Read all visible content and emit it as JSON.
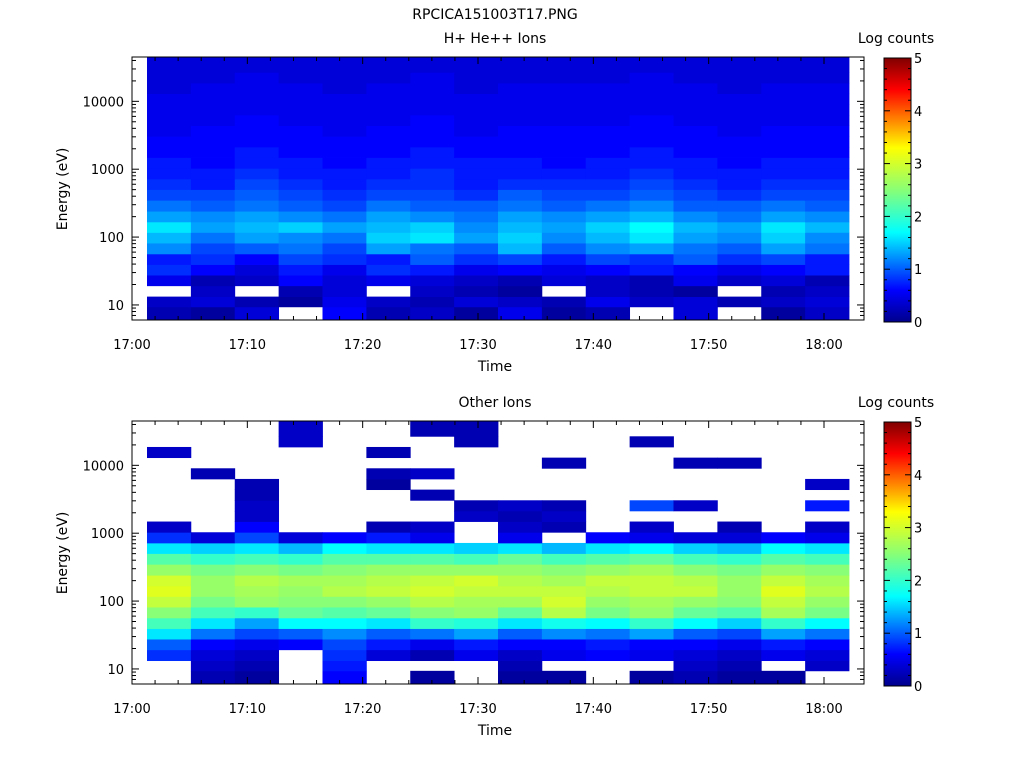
{
  "figure_title": "RPCICA151003T17.PNG",
  "chart_data": [
    {
      "type": "heatmap",
      "title": "H+ He++ Ions",
      "xlabel": "Time",
      "ylabel": "Energy (eV)",
      "x_ticks": [
        "17:00",
        "17:10",
        "17:20",
        "17:30",
        "17:40",
        "17:50",
        "18:00"
      ],
      "y_ticks": [
        "10",
        "100",
        "1000",
        "10000"
      ],
      "y_scale": "log",
      "ylim": [
        6,
        45000
      ],
      "colorbar": {
        "label": "Log counts",
        "ticks": [
          "0",
          "1",
          "2",
          "3",
          "4",
          "5"
        ],
        "range": [
          0,
          5
        ]
      },
      "time_bins": [
        "17:02",
        "17:06",
        "17:10",
        "17:14",
        "17:18",
        "17:22",
        "17:26",
        "17:30",
        "17:34",
        "17:38",
        "17:42",
        "17:46",
        "17:50",
        "17:54",
        "17:58",
        "18:02"
      ],
      "energy_bins_eV": [
        8,
        11,
        16,
        23,
        33,
        47,
        68,
        98,
        140,
        200,
        290,
        420,
        600,
        860,
        1240,
        1780,
        2550,
        3660,
        5260,
        7550,
        10840,
        15560,
        22340,
        32080
      ],
      "values": [
        [
          0.2,
          0.1,
          0.4,
          null,
          0.6,
          0.2,
          0.3,
          0.1,
          0.5,
          0.1,
          0.2,
          null,
          0.4,
          null,
          0.1,
          0.3
        ],
        [
          0.3,
          0.4,
          0.2,
          0.1,
          0.5,
          0.3,
          0.2,
          0.4,
          0.3,
          0.2,
          0.5,
          0.3,
          0.4,
          0.2,
          0.3,
          0.4
        ],
        [
          null,
          0.3,
          null,
          0.2,
          0.4,
          null,
          0.3,
          0.2,
          0.1,
          null,
          0.3,
          0.2,
          0.1,
          null,
          0.2,
          0.3
        ],
        [
          0.5,
          0.2,
          0.3,
          0.6,
          0.4,
          0.5,
          0.4,
          0.3,
          0.2,
          0.4,
          0.3,
          0.2,
          0.5,
          0.3,
          0.4,
          0.2
        ],
        [
          0.8,
          0.6,
          0.4,
          0.7,
          0.5,
          0.8,
          0.7,
          0.5,
          0.6,
          0.5,
          0.6,
          0.7,
          0.6,
          0.5,
          0.6,
          0.7
        ],
        [
          0.7,
          0.8,
          0.6,
          0.9,
          0.8,
          0.7,
          1.0,
          0.8,
          0.9,
          0.7,
          0.9,
          0.8,
          1.0,
          0.8,
          0.9,
          0.7
        ],
        [
          1.2,
          0.9,
          1.0,
          1.1,
          0.9,
          1.3,
          1.1,
          1.0,
          1.4,
          1.0,
          1.2,
          1.3,
          1.1,
          1.0,
          1.3,
          1.1
        ],
        [
          1.4,
          1.1,
          1.3,
          1.2,
          1.1,
          1.5,
          1.6,
          1.3,
          1.5,
          1.2,
          1.4,
          1.6,
          1.3,
          1.2,
          1.5,
          1.2
        ],
        [
          1.6,
          1.3,
          1.4,
          1.5,
          1.3,
          1.4,
          1.5,
          1.2,
          1.4,
          1.3,
          1.5,
          1.7,
          1.4,
          1.3,
          1.6,
          1.4
        ],
        [
          1.3,
          1.2,
          1.3,
          1.2,
          1.1,
          1.3,
          1.2,
          1.1,
          1.3,
          1.2,
          1.3,
          1.4,
          1.2,
          1.1,
          1.3,
          1.2
        ],
        [
          1.1,
          1.0,
          1.1,
          1.0,
          0.9,
          1.1,
          1.0,
          1.0,
          1.1,
          1.0,
          1.1,
          1.2,
          1.0,
          1.0,
          1.1,
          1.0
        ],
        [
          0.9,
          0.9,
          1.0,
          0.9,
          0.8,
          0.9,
          0.9,
          0.8,
          1.0,
          0.9,
          0.9,
          1.0,
          0.9,
          0.8,
          0.9,
          0.9
        ],
        [
          0.8,
          0.7,
          0.9,
          0.8,
          0.7,
          0.8,
          0.8,
          0.7,
          0.8,
          0.8,
          0.8,
          0.9,
          0.8,
          0.7,
          0.8,
          0.8
        ],
        [
          0.7,
          0.7,
          0.8,
          0.7,
          0.7,
          0.7,
          0.8,
          0.7,
          0.7,
          0.7,
          0.7,
          0.8,
          0.7,
          0.7,
          0.7,
          0.7
        ],
        [
          0.7,
          0.6,
          0.7,
          0.7,
          0.6,
          0.7,
          0.7,
          0.7,
          0.7,
          0.6,
          0.7,
          0.7,
          0.7,
          0.6,
          0.7,
          0.7
        ],
        [
          0.6,
          0.6,
          0.7,
          0.6,
          0.6,
          0.6,
          0.7,
          0.6,
          0.6,
          0.6,
          0.6,
          0.7,
          0.6,
          0.6,
          0.6,
          0.6
        ],
        [
          0.6,
          0.6,
          0.6,
          0.6,
          0.6,
          0.6,
          0.6,
          0.6,
          0.6,
          0.6,
          0.6,
          0.6,
          0.6,
          0.6,
          0.6,
          0.6
        ],
        [
          0.5,
          0.6,
          0.6,
          0.6,
          0.5,
          0.6,
          0.6,
          0.5,
          0.6,
          0.6,
          0.6,
          0.6,
          0.6,
          0.5,
          0.6,
          0.6
        ],
        [
          0.5,
          0.5,
          0.6,
          0.5,
          0.5,
          0.5,
          0.6,
          0.5,
          0.5,
          0.5,
          0.5,
          0.6,
          0.5,
          0.5,
          0.5,
          0.5
        ],
        [
          0.5,
          0.5,
          0.5,
          0.5,
          0.5,
          0.5,
          0.5,
          0.5,
          0.5,
          0.5,
          0.5,
          0.5,
          0.5,
          0.5,
          0.5,
          0.5
        ],
        [
          0.5,
          0.5,
          0.5,
          0.5,
          0.5,
          0.5,
          0.5,
          0.5,
          0.5,
          0.5,
          0.5,
          0.5,
          0.5,
          0.5,
          0.5,
          0.5
        ],
        [
          0.4,
          0.5,
          0.5,
          0.5,
          0.4,
          0.5,
          0.5,
          0.4,
          0.5,
          0.5,
          0.5,
          0.5,
          0.5,
          0.4,
          0.5,
          0.5
        ],
        [
          0.4,
          0.4,
          0.5,
          0.4,
          0.4,
          0.4,
          0.5,
          0.4,
          0.4,
          0.4,
          0.4,
          0.5,
          0.4,
          0.4,
          0.4,
          0.4
        ],
        [
          0.4,
          0.4,
          0.4,
          0.4,
          0.4,
          0.4,
          0.4,
          0.4,
          0.4,
          0.4,
          0.4,
          0.4,
          0.4,
          0.4,
          0.4,
          0.4
        ]
      ]
    },
    {
      "type": "heatmap",
      "title": "Other Ions",
      "xlabel": "Time",
      "ylabel": "Energy (eV)",
      "x_ticks": [
        "17:00",
        "17:10",
        "17:20",
        "17:30",
        "17:40",
        "17:50",
        "18:00"
      ],
      "y_ticks": [
        "10",
        "100",
        "1000",
        "10000"
      ],
      "y_scale": "log",
      "ylim": [
        6,
        45000
      ],
      "colorbar": {
        "label": "Log counts",
        "ticks": [
          "0",
          "1",
          "2",
          "3",
          "4",
          "5"
        ],
        "range": [
          0,
          5
        ]
      },
      "time_bins": [
        "17:02",
        "17:06",
        "17:10",
        "17:14",
        "17:18",
        "17:22",
        "17:26",
        "17:30",
        "17:34",
        "17:38",
        "17:42",
        "17:46",
        "17:50",
        "17:54",
        "17:58",
        "18:02"
      ],
      "energy_bins_eV": [
        8,
        11,
        16,
        23,
        33,
        47,
        68,
        98,
        140,
        200,
        290,
        420,
        600,
        860,
        1240,
        1780,
        2550,
        3660,
        5260,
        7550,
        10840,
        15560,
        22340,
        32080
      ],
      "values": [
        [
          null,
          0.2,
          0.1,
          null,
          0.6,
          null,
          0.1,
          null,
          0.1,
          0.1,
          null,
          0.1,
          0.2,
          0.1,
          0.1,
          null
        ],
        [
          null,
          0.3,
          0.2,
          null,
          0.7,
          null,
          null,
          null,
          0.2,
          null,
          null,
          null,
          0.3,
          0.2,
          null,
          0.3
        ],
        [
          0.8,
          0.4,
          0.3,
          null,
          0.8,
          0.4,
          0.2,
          0.5,
          0.3,
          0.5,
          0.6,
          0.5,
          0.4,
          0.3,
          0.5,
          0.4
        ],
        [
          1.0,
          0.6,
          0.5,
          0.6,
          0.9,
          0.7,
          0.5,
          0.7,
          0.6,
          0.6,
          0.7,
          0.6,
          0.6,
          0.5,
          0.7,
          0.6
        ],
        [
          1.6,
          1.1,
          0.9,
          1.0,
          1.2,
          1.0,
          1.1,
          1.3,
          1.0,
          1.2,
          1.1,
          1.3,
          1.0,
          0.9,
          1.3,
          1.1
        ],
        [
          2.1,
          1.6,
          1.3,
          1.7,
          1.7,
          1.6,
          2.0,
          1.9,
          1.6,
          1.8,
          1.7,
          2.0,
          1.7,
          1.5,
          2.0,
          1.7
        ],
        [
          2.5,
          2.1,
          2.0,
          2.3,
          2.2,
          2.3,
          2.5,
          2.6,
          2.3,
          2.8,
          2.4,
          2.6,
          2.3,
          2.2,
          2.7,
          2.4
        ],
        [
          2.9,
          2.4,
          2.6,
          2.5,
          2.5,
          2.6,
          2.8,
          2.7,
          2.7,
          3.0,
          2.6,
          2.7,
          2.6,
          2.5,
          2.9,
          2.6
        ],
        [
          3.1,
          2.6,
          2.7,
          2.6,
          2.8,
          2.9,
          3.0,
          2.9,
          2.9,
          2.9,
          2.8,
          2.9,
          2.9,
          2.6,
          3.1,
          2.8
        ],
        [
          3.0,
          2.6,
          2.8,
          2.7,
          2.7,
          2.8,
          2.9,
          3.0,
          2.8,
          2.7,
          2.9,
          2.9,
          2.8,
          2.6,
          2.9,
          2.7
        ],
        [
          2.6,
          2.4,
          2.5,
          2.4,
          2.5,
          2.6,
          2.6,
          2.6,
          2.6,
          2.5,
          2.6,
          2.7,
          2.5,
          2.4,
          2.6,
          2.5
        ],
        [
          2.2,
          2.0,
          2.1,
          2.0,
          2.2,
          2.2,
          2.2,
          2.1,
          2.3,
          2.1,
          2.2,
          2.3,
          2.1,
          2.0,
          2.2,
          2.1
        ],
        [
          1.6,
          1.5,
          1.6,
          1.4,
          1.7,
          1.6,
          1.6,
          1.5,
          1.6,
          1.4,
          1.6,
          1.7,
          1.5,
          1.4,
          1.7,
          1.6
        ],
        [
          0.8,
          0.4,
          0.9,
          0.4,
          0.6,
          0.7,
          0.5,
          null,
          0.5,
          null,
          0.6,
          0.5,
          0.4,
          0.4,
          0.6,
          0.5
        ],
        [
          0.3,
          null,
          0.6,
          null,
          null,
          0.2,
          0.3,
          null,
          0.3,
          0.2,
          null,
          0.3,
          null,
          0.2,
          null,
          0.3
        ],
        [
          null,
          null,
          0.3,
          null,
          null,
          null,
          null,
          0.3,
          0.2,
          0.3,
          null,
          null,
          null,
          null,
          null,
          null
        ],
        [
          null,
          null,
          0.3,
          null,
          null,
          null,
          null,
          0.2,
          0.3,
          0.2,
          null,
          0.9,
          0.3,
          null,
          null,
          0.7
        ],
        [
          null,
          null,
          0.2,
          null,
          null,
          null,
          0.2,
          null,
          null,
          null,
          null,
          null,
          null,
          null,
          null,
          null
        ],
        [
          null,
          null,
          0.2,
          null,
          null,
          0.1,
          null,
          null,
          null,
          null,
          null,
          null,
          null,
          null,
          null,
          0.3
        ],
        [
          null,
          0.2,
          null,
          null,
          null,
          0.2,
          0.3,
          null,
          null,
          null,
          null,
          null,
          null,
          null,
          null,
          null
        ],
        [
          null,
          null,
          null,
          null,
          null,
          null,
          null,
          null,
          null,
          0.2,
          null,
          null,
          0.2,
          0.2,
          null,
          null
        ],
        [
          0.3,
          null,
          null,
          null,
          null,
          0.2,
          null,
          null,
          null,
          null,
          null,
          null,
          null,
          null,
          null,
          null
        ],
        [
          null,
          null,
          null,
          0.3,
          null,
          null,
          null,
          0.2,
          null,
          null,
          null,
          0.2,
          null,
          null,
          null,
          null
        ],
        [
          null,
          null,
          null,
          0.3,
          null,
          null,
          0.2,
          0.2,
          null,
          null,
          null,
          null,
          null,
          null,
          null,
          null
        ]
      ]
    }
  ]
}
